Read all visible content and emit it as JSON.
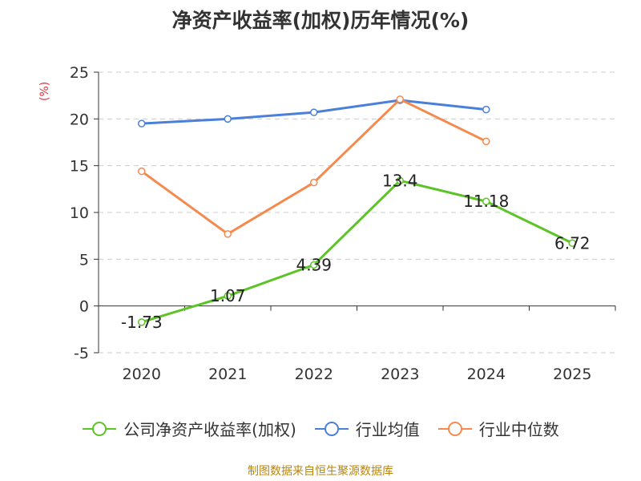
{
  "chart_data": {
    "type": "line",
    "title": "净资产收益率(加权)历年情况(%)",
    "ylabel": "(%)",
    "xlabel": "",
    "categories": [
      "2020",
      "2021",
      "2022",
      "2023",
      "2024",
      "2025"
    ],
    "ylim": [
      -5,
      25
    ],
    "yticks": [
      -5,
      0,
      5,
      10,
      15,
      20,
      25
    ],
    "grid": true,
    "series": [
      {
        "name": "公司净资产收益率(加权)",
        "color": "#5cc427",
        "values": [
          -1.73,
          1.07,
          4.39,
          13.4,
          11.18,
          6.72
        ],
        "labels": [
          "-1.73",
          "1.07",
          "4.39",
          "13.4",
          "11.18",
          "6.72"
        ],
        "show_labels": true
      },
      {
        "name": "行业均值",
        "color": "#4b7fd9",
        "values": [
          19.5,
          20.0,
          20.7,
          22.0,
          21.0,
          null
        ],
        "show_labels": false
      },
      {
        "name": "行业中位数",
        "color": "#f58a4e",
        "values": [
          14.4,
          7.7,
          13.2,
          22.1,
          17.6,
          null
        ],
        "show_labels": false
      }
    ]
  },
  "source": "制图数据来自恒生聚源数据库"
}
